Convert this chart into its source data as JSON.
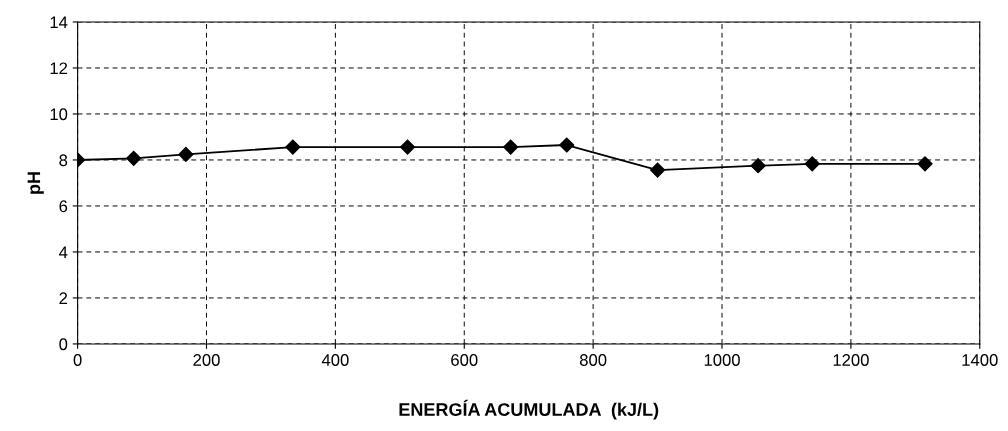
{
  "chart_data": {
    "type": "line",
    "xlabel": "ENERGÍA ACUMULADA  (kJ/L)",
    "ylabel": "pH",
    "x": [
      0,
      87,
      168,
      334,
      512,
      672,
      759,
      900,
      1056,
      1140,
      1315
    ],
    "series": [
      {
        "color": "#000000",
        "values": [
          8.0,
          8.07,
          8.24,
          8.56,
          8.56,
          8.56,
          8.65,
          7.56,
          7.75,
          7.83,
          7.83
        ]
      }
    ],
    "xlim": [
      0,
      1400
    ],
    "xticks": [
      0,
      200,
      400,
      600,
      800,
      1000,
      1200,
      1400
    ],
    "ylim": [
      0,
      14
    ],
    "yticks": [
      0,
      2,
      4,
      6,
      8,
      10,
      12,
      14
    ],
    "grid": true,
    "marker": "diamond",
    "line_style": "solid",
    "legend": false
  }
}
